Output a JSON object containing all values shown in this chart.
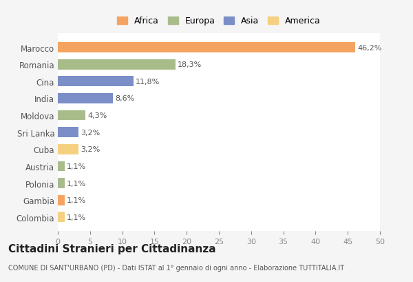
{
  "categories": [
    "Marocco",
    "Romania",
    "Cina",
    "India",
    "Moldova",
    "Sri Lanka",
    "Cuba",
    "Austria",
    "Polonia",
    "Gambia",
    "Colombia"
  ],
  "values": [
    46.2,
    18.3,
    11.8,
    8.6,
    4.3,
    3.2,
    3.2,
    1.1,
    1.1,
    1.1,
    1.1
  ],
  "labels": [
    "46,2%",
    "18,3%",
    "11,8%",
    "8,6%",
    "4,3%",
    "3,2%",
    "3,2%",
    "1,1%",
    "1,1%",
    "1,1%",
    "1,1%"
  ],
  "colors": [
    "#F4A460",
    "#A8BC8A",
    "#7B8EC8",
    "#7B8EC8",
    "#A8BC8A",
    "#7B8EC8",
    "#F5D080",
    "#A8BC8A",
    "#A8BC8A",
    "#F4A460",
    "#F5D080"
  ],
  "continent_colors": {
    "Africa": "#F4A460",
    "Europa": "#A8BC8A",
    "Asia": "#7B8EC8",
    "America": "#F5D080"
  },
  "legend_labels": [
    "Africa",
    "Europa",
    "Asia",
    "America"
  ],
  "title": "Cittadini Stranieri per Cittadinanza",
  "subtitle": "COMUNE DI SANT'URBANO (PD) - Dati ISTAT al 1° gennaio di ogni anno - Elaborazione TUTTITALIA.IT",
  "xlim": [
    0,
    50
  ],
  "xticks": [
    0,
    5,
    10,
    15,
    20,
    25,
    30,
    35,
    40,
    45,
    50
  ],
  "bg_color": "#f5f5f5",
  "bar_bg_color": "#ffffff",
  "grid_color": "#ffffff"
}
